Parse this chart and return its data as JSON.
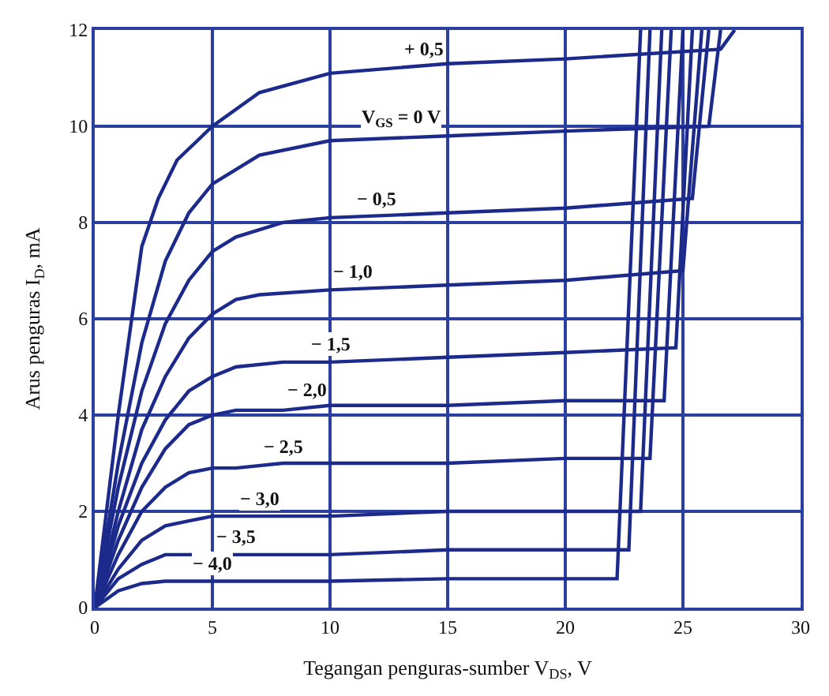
{
  "chart_data": {
    "type": "line",
    "xlabel": "Tegangan penguras-sumber V$_{DS}$, V",
    "ylabel": "Arus penguras I$_{D}$, mA",
    "xlim": [
      0,
      30
    ],
    "ylim": [
      0,
      12
    ],
    "xticks": [
      0,
      5,
      10,
      15,
      20,
      25,
      30
    ],
    "yticks": [
      0,
      2,
      4,
      6,
      8,
      10,
      12
    ],
    "grid": true,
    "legend": false,
    "marker": "none",
    "line_style": "solid",
    "series": [
      {
        "name": "+ 0,5",
        "color": "#1c2a8c",
        "x": [
          0,
          1,
          2,
          2.7,
          3.5,
          5,
          7,
          10,
          15,
          20,
          26.6,
          27.2
        ],
        "values": [
          0,
          4,
          7.5,
          8.5,
          9.3,
          10,
          10.7,
          11.1,
          11.3,
          11.4,
          11.6,
          12
        ]
      },
      {
        "name": "V$_{GS}$ = 0 V",
        "color": "#1c2a8c",
        "x": [
          0,
          1,
          2,
          3,
          4,
          5,
          7,
          10,
          15,
          20,
          26.1,
          26.6
        ],
        "values": [
          0,
          3,
          5.5,
          7.2,
          8.2,
          8.8,
          9.4,
          9.7,
          9.8,
          9.9,
          10.0,
          12
        ]
      },
      {
        "name": "− 0,5",
        "color": "#1c2a8c",
        "x": [
          0,
          1,
          2,
          3,
          4,
          5,
          6,
          8,
          10,
          15,
          20,
          25.4,
          26.1
        ],
        "values": [
          0,
          2.5,
          4.5,
          5.9,
          6.8,
          7.4,
          7.7,
          8.0,
          8.1,
          8.2,
          8.3,
          8.5,
          12
        ]
      },
      {
        "name": "− 1,0",
        "color": "#1c2a8c",
        "x": [
          0,
          1,
          2,
          3,
          4,
          5,
          6,
          7,
          10,
          15,
          20,
          25.0,
          25.8
        ],
        "values": [
          0,
          2,
          3.7,
          4.8,
          5.6,
          6.1,
          6.4,
          6.5,
          6.6,
          6.7,
          6.8,
          7.0,
          12
        ]
      },
      {
        "name": "− 1,5",
        "color": "#1c2a8c",
        "x": [
          0,
          1,
          2,
          3,
          4,
          5,
          6,
          8,
          10,
          15,
          20,
          24.7,
          25.4
        ],
        "values": [
          0,
          1.7,
          3.0,
          3.9,
          4.5,
          4.8,
          5.0,
          5.1,
          5.1,
          5.2,
          5.3,
          5.4,
          12
        ]
      },
      {
        "name": "− 2,0",
        "color": "#1c2a8c",
        "x": [
          0,
          1,
          2,
          3,
          4,
          5,
          6,
          8,
          10,
          15,
          20,
          24.2,
          25.0
        ],
        "values": [
          0,
          1.4,
          2.5,
          3.3,
          3.8,
          4.0,
          4.1,
          4.1,
          4.2,
          4.2,
          4.3,
          4.3,
          12
        ]
      },
      {
        "name": "− 2,5",
        "color": "#1c2a8c",
        "x": [
          0,
          1,
          2,
          3,
          4,
          5,
          6,
          8,
          10,
          15,
          20,
          23.6,
          24.5
        ],
        "values": [
          0,
          1.1,
          2.0,
          2.5,
          2.8,
          2.9,
          2.9,
          3.0,
          3.0,
          3.0,
          3.1,
          3.1,
          12
        ]
      },
      {
        "name": "− 3,0",
        "color": "#1c2a8c",
        "x": [
          0,
          1,
          2,
          3,
          4,
          5,
          8,
          10,
          15,
          20,
          23.2,
          24.1
        ],
        "values": [
          0,
          0.8,
          1.4,
          1.7,
          1.8,
          1.9,
          1.9,
          1.9,
          2.0,
          2.0,
          2.0,
          12
        ]
      },
      {
        "name": "− 3,5",
        "color": "#1c2a8c",
        "x": [
          0,
          1,
          2,
          3,
          4,
          6,
          10,
          15,
          20,
          22.7,
          23.6
        ],
        "values": [
          0,
          0.6,
          0.9,
          1.1,
          1.1,
          1.1,
          1.1,
          1.2,
          1.2,
          1.2,
          12
        ]
      },
      {
        "name": "− 4,0",
        "color": "#1c2a8c",
        "x": [
          0,
          1,
          2,
          3,
          5,
          10,
          15,
          20,
          22.2,
          23.2
        ],
        "values": [
          0,
          0.35,
          0.5,
          0.55,
          0.55,
          0.55,
          0.6,
          0.6,
          0.6,
          12
        ]
      }
    ]
  }
}
